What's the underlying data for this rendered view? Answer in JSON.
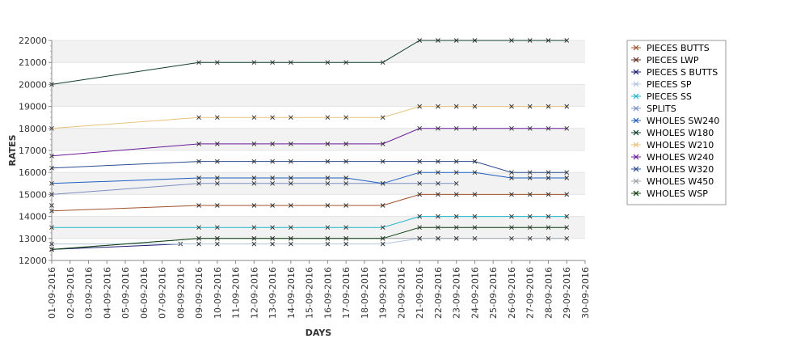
{
  "chart_data": {
    "type": "line",
    "xlabel": "DAYS",
    "ylabel": "RATES",
    "ylim": [
      12000,
      22000
    ],
    "yticks": [
      12000,
      13000,
      14000,
      15000,
      16000,
      17000,
      18000,
      19000,
      20000,
      21000,
      22000
    ],
    "x_dates": [
      "01-09-2016",
      "02-09-2016",
      "03-09-2016",
      "04-09-2016",
      "05-09-2016",
      "06-09-2016",
      "07-09-2016",
      "08-09-2016",
      "09-09-2016",
      "10-09-2016",
      "11-09-2016",
      "12-09-2016",
      "13-09-2016",
      "14-09-2016",
      "15-09-2016",
      "16-09-2016",
      "17-09-2016",
      "18-09-2016",
      "19-09-2016",
      "20-09-2016",
      "21-09-2016",
      "22-09-2016",
      "23-09-2016",
      "24-09-2016",
      "25-09-2016",
      "26-09-2016",
      "27-09-2016",
      "28-09-2016",
      "29-09-2016",
      "30-09-2016"
    ],
    "grid": "horizontal alternating bands",
    "legend_position": "right",
    "series": [
      {
        "name": "PIECES BUTTS",
        "color": "#a0522d",
        "points": [
          [
            "01-09-2016",
            14250
          ],
          [
            "09-09-2016",
            14500
          ],
          [
            "10-09-2016",
            14500
          ],
          [
            "12-09-2016",
            14500
          ],
          [
            "13-09-2016",
            14500
          ],
          [
            "14-09-2016",
            14500
          ],
          [
            "16-09-2016",
            14500
          ],
          [
            "17-09-2016",
            14500
          ],
          [
            "19-09-2016",
            14500
          ],
          [
            "21-09-2016",
            15000
          ],
          [
            "22-09-2016",
            15000
          ],
          [
            "23-09-2016",
            15000
          ],
          [
            "24-09-2016",
            15000
          ],
          [
            "26-09-2016",
            15000
          ],
          [
            "27-09-2016",
            15000
          ],
          [
            "28-09-2016",
            15000
          ],
          [
            "29-09-2016",
            15000
          ]
        ]
      },
      {
        "name": "PIECES LWP",
        "color": "#5c2d1e",
        "points": [
          [
            "01-09-2016",
            14500
          ]
        ]
      },
      {
        "name": "PIECES S BUTTS",
        "color": "#1a1a6e",
        "points": [
          [
            "01-09-2016",
            12500
          ],
          [
            "08-09-2016",
            12750
          ]
        ]
      },
      {
        "name": "PIECES SP",
        "color": "#b0c4de",
        "points": [
          [
            "01-09-2016",
            12750
          ],
          [
            "09-09-2016",
            12750
          ],
          [
            "10-09-2016",
            12750
          ],
          [
            "12-09-2016",
            12750
          ],
          [
            "13-09-2016",
            12750
          ],
          [
            "14-09-2016",
            12750
          ],
          [
            "16-09-2016",
            12750
          ],
          [
            "17-09-2016",
            12750
          ],
          [
            "19-09-2016",
            12750
          ],
          [
            "21-09-2016",
            13000
          ],
          [
            "22-09-2016",
            13000
          ],
          [
            "23-09-2016",
            13000
          ]
        ]
      },
      {
        "name": "PIECES SS",
        "color": "#22b5c8",
        "points": [
          [
            "01-09-2016",
            13500
          ],
          [
            "09-09-2016",
            13500
          ],
          [
            "10-09-2016",
            13500
          ],
          [
            "12-09-2016",
            13500
          ],
          [
            "13-09-2016",
            13500
          ],
          [
            "14-09-2016",
            13500
          ],
          [
            "16-09-2016",
            13500
          ],
          [
            "17-09-2016",
            13500
          ],
          [
            "19-09-2016",
            13500
          ],
          [
            "21-09-2016",
            14000
          ],
          [
            "22-09-2016",
            14000
          ],
          [
            "23-09-2016",
            14000
          ],
          [
            "24-09-2016",
            14000
          ],
          [
            "26-09-2016",
            14000
          ],
          [
            "27-09-2016",
            14000
          ],
          [
            "28-09-2016",
            14000
          ],
          [
            "29-09-2016",
            14000
          ]
        ]
      },
      {
        "name": "SPLITS",
        "color": "#7b8fc0",
        "points": [
          [
            "01-09-2016",
            15000
          ],
          [
            "09-09-2016",
            15500
          ],
          [
            "10-09-2016",
            15500
          ],
          [
            "12-09-2016",
            15500
          ],
          [
            "13-09-2016",
            15500
          ],
          [
            "14-09-2016",
            15500
          ],
          [
            "16-09-2016",
            15500
          ],
          [
            "17-09-2016",
            15500
          ],
          [
            "19-09-2016",
            15500
          ],
          [
            "21-09-2016",
            15500
          ],
          [
            "22-09-2016",
            15500
          ],
          [
            "23-09-2016",
            15500
          ]
        ]
      },
      {
        "name": "WHOLES SW240",
        "color": "#1f5fbf",
        "points": [
          [
            "01-09-2016",
            15500
          ],
          [
            "09-09-2016",
            15750
          ],
          [
            "10-09-2016",
            15750
          ],
          [
            "12-09-2016",
            15750
          ],
          [
            "13-09-2016",
            15750
          ],
          [
            "14-09-2016",
            15750
          ],
          [
            "16-09-2016",
            15750
          ],
          [
            "17-09-2016",
            15750
          ],
          [
            "19-09-2016",
            15500
          ],
          [
            "21-09-2016",
            16000
          ],
          [
            "22-09-2016",
            16000
          ],
          [
            "23-09-2016",
            16000
          ],
          [
            "24-09-2016",
            16000
          ],
          [
            "26-09-2016",
            15750
          ],
          [
            "27-09-2016",
            15750
          ],
          [
            "28-09-2016",
            15750
          ],
          [
            "29-09-2016",
            15750
          ]
        ]
      },
      {
        "name": "WHOLES W180",
        "color": "#0f3d2e",
        "points": [
          [
            "01-09-2016",
            20000
          ],
          [
            "09-09-2016",
            21000
          ],
          [
            "10-09-2016",
            21000
          ],
          [
            "12-09-2016",
            21000
          ],
          [
            "13-09-2016",
            21000
          ],
          [
            "14-09-2016",
            21000
          ],
          [
            "16-09-2016",
            21000
          ],
          [
            "17-09-2016",
            21000
          ],
          [
            "19-09-2016",
            21000
          ],
          [
            "21-09-2016",
            22000
          ],
          [
            "22-09-2016",
            22000
          ],
          [
            "23-09-2016",
            22000
          ],
          [
            "24-09-2016",
            22000
          ],
          [
            "26-09-2016",
            22000
          ],
          [
            "27-09-2016",
            22000
          ],
          [
            "28-09-2016",
            22000
          ],
          [
            "29-09-2016",
            22000
          ]
        ]
      },
      {
        "name": "WHOLES W210",
        "color": "#e8c27a",
        "points": [
          [
            "01-09-2016",
            18000
          ],
          [
            "09-09-2016",
            18500
          ],
          [
            "10-09-2016",
            18500
          ],
          [
            "12-09-2016",
            18500
          ],
          [
            "13-09-2016",
            18500
          ],
          [
            "14-09-2016",
            18500
          ],
          [
            "16-09-2016",
            18500
          ],
          [
            "17-09-2016",
            18500
          ],
          [
            "19-09-2016",
            18500
          ],
          [
            "21-09-2016",
            19000
          ],
          [
            "22-09-2016",
            19000
          ],
          [
            "23-09-2016",
            19000
          ],
          [
            "24-09-2016",
            19000
          ],
          [
            "26-09-2016",
            19000
          ],
          [
            "27-09-2016",
            19000
          ],
          [
            "28-09-2016",
            19000
          ],
          [
            "29-09-2016",
            19000
          ]
        ]
      },
      {
        "name": "WHOLES W240",
        "color": "#6a1b9a",
        "points": [
          [
            "01-09-2016",
            16750
          ],
          [
            "09-09-2016",
            17300
          ],
          [
            "10-09-2016",
            17300
          ],
          [
            "12-09-2016",
            17300
          ],
          [
            "13-09-2016",
            17300
          ],
          [
            "14-09-2016",
            17300
          ],
          [
            "16-09-2016",
            17300
          ],
          [
            "17-09-2016",
            17300
          ],
          [
            "19-09-2016",
            17300
          ],
          [
            "21-09-2016",
            18000
          ],
          [
            "22-09-2016",
            18000
          ],
          [
            "23-09-2016",
            18000
          ],
          [
            "24-09-2016",
            18000
          ],
          [
            "26-09-2016",
            18000
          ],
          [
            "27-09-2016",
            18000
          ],
          [
            "28-09-2016",
            18000
          ],
          [
            "29-09-2016",
            18000
          ]
        ]
      },
      {
        "name": "WHOLES W320",
        "color": "#2a4d8f",
        "points": [
          [
            "01-09-2016",
            16200
          ],
          [
            "09-09-2016",
            16500
          ],
          [
            "10-09-2016",
            16500
          ],
          [
            "12-09-2016",
            16500
          ],
          [
            "13-09-2016",
            16500
          ],
          [
            "14-09-2016",
            16500
          ],
          [
            "16-09-2016",
            16500
          ],
          [
            "17-09-2016",
            16500
          ],
          [
            "19-09-2016",
            16500
          ],
          [
            "21-09-2016",
            16500
          ],
          [
            "22-09-2016",
            16500
          ],
          [
            "23-09-2016",
            16500
          ],
          [
            "24-09-2016",
            16500
          ],
          [
            "26-09-2016",
            16000
          ],
          [
            "27-09-2016",
            16000
          ],
          [
            "28-09-2016",
            16000
          ],
          [
            "29-09-2016",
            16000
          ]
        ]
      },
      {
        "name": "WHOLES W450",
        "color": "#9aa0a6",
        "points": [
          [
            "01-09-2016",
            12500
          ],
          [
            "09-09-2016",
            13000
          ],
          [
            "10-09-2016",
            13000
          ],
          [
            "12-09-2016",
            13000
          ],
          [
            "13-09-2016",
            13000
          ],
          [
            "14-09-2016",
            13000
          ],
          [
            "16-09-2016",
            13000
          ],
          [
            "17-09-2016",
            13000
          ],
          [
            "19-09-2016",
            13000
          ],
          [
            "21-09-2016",
            13000
          ],
          [
            "22-09-2016",
            13000
          ],
          [
            "23-09-2016",
            13000
          ],
          [
            "24-09-2016",
            13000
          ],
          [
            "26-09-2016",
            13000
          ],
          [
            "27-09-2016",
            13000
          ],
          [
            "28-09-2016",
            13000
          ],
          [
            "29-09-2016",
            13000
          ]
        ]
      },
      {
        "name": "WHOLES WSP",
        "color": "#0b3d0b",
        "points": [
          [
            "01-09-2016",
            12500
          ],
          [
            "09-09-2016",
            13000
          ],
          [
            "10-09-2016",
            13000
          ],
          [
            "12-09-2016",
            13000
          ],
          [
            "13-09-2016",
            13000
          ],
          [
            "14-09-2016",
            13000
          ],
          [
            "16-09-2016",
            13000
          ],
          [
            "17-09-2016",
            13000
          ],
          [
            "19-09-2016",
            13000
          ],
          [
            "21-09-2016",
            13500
          ],
          [
            "22-09-2016",
            13500
          ],
          [
            "23-09-2016",
            13500
          ],
          [
            "24-09-2016",
            13500
          ],
          [
            "26-09-2016",
            13500
          ],
          [
            "27-09-2016",
            13500
          ],
          [
            "28-09-2016",
            13500
          ],
          [
            "29-09-2016",
            13500
          ]
        ]
      }
    ]
  }
}
